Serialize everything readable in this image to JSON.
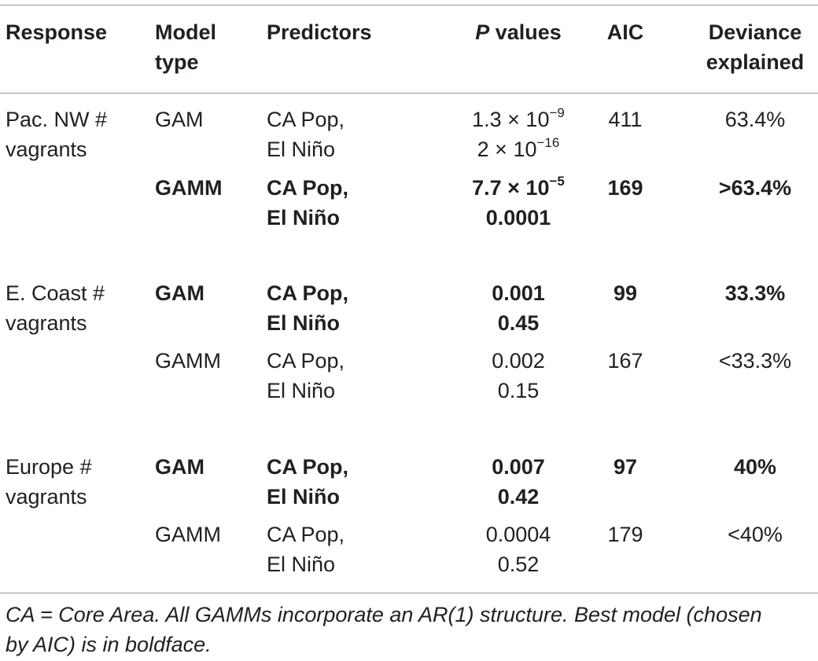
{
  "headers": {
    "response": "Response",
    "model_type": [
      "Model",
      "type"
    ],
    "predictors": "Predictors",
    "p_values_italic": "P",
    "p_values_rest": " values",
    "aic": "AIC",
    "deviance": [
      "Deviance",
      "explained"
    ]
  },
  "rows": [
    {
      "response": [
        "Pac. NW #",
        "vagrants"
      ],
      "model": "GAM",
      "bold": false,
      "predictors": [
        "CA Pop,",
        "El Niño"
      ],
      "p1_base": "1.3 × 10",
      "p1_exp": "−9",
      "p2_base": "2 × 10",
      "p2_exp": "−16",
      "aic": "411",
      "deviance": "63.4%"
    },
    {
      "response": [
        "",
        ""
      ],
      "model": "GAMM",
      "bold": true,
      "predictors": [
        "CA Pop,",
        "El Niño"
      ],
      "p1_base": "7.7 × 10",
      "p1_exp": "−5",
      "p2": "0.0001",
      "aic": "169",
      "deviance": ">63.4%"
    },
    {
      "response": [
        "E. Coast #",
        "vagrants"
      ],
      "model": "GAM",
      "bold": true,
      "predictors": [
        "CA Pop,",
        "El Niño"
      ],
      "p": [
        "0.001",
        "0.45"
      ],
      "aic": "99",
      "deviance": "33.3%"
    },
    {
      "response": [
        "",
        ""
      ],
      "model": "GAMM",
      "bold": false,
      "predictors": [
        "CA Pop,",
        "El Niño"
      ],
      "p": [
        "0.002",
        "0.15"
      ],
      "aic": "167",
      "deviance": "<33.3%"
    },
    {
      "response": [
        "Europe #",
        "vagrants"
      ],
      "model": "GAM",
      "bold": true,
      "predictors": [
        "CA Pop,",
        "El Niño"
      ],
      "p": [
        "0.007",
        "0.42"
      ],
      "aic": "97",
      "deviance": "40%"
    },
    {
      "response": [
        "",
        ""
      ],
      "model": "GAMM",
      "bold": false,
      "predictors": [
        "CA Pop,",
        "El Niño"
      ],
      "p": [
        "0.0004",
        "0.52"
      ],
      "aic": "179",
      "deviance": "<40%"
    }
  ],
  "footnote": [
    "CA = Core Area. All GAMMs incorporate an AR(1) structure. Best model (chosen",
    "by AIC) is in boldface."
  ]
}
